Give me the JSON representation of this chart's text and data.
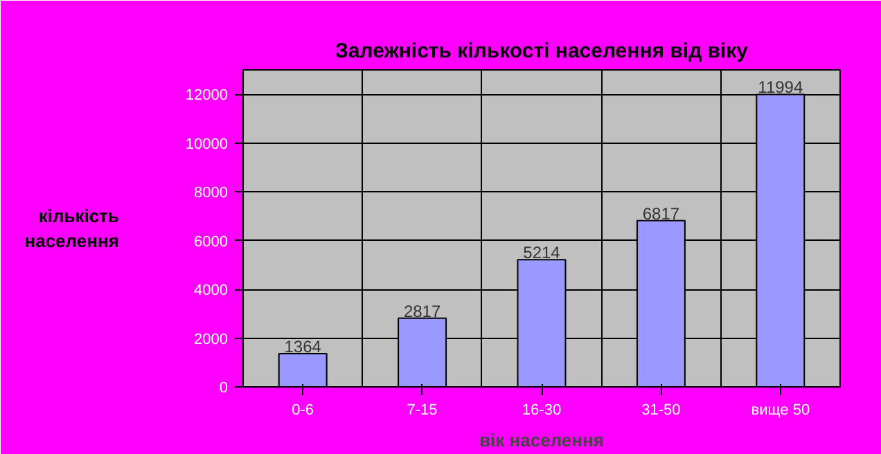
{
  "chart_data": {
    "type": "bar",
    "title": "Залежність кількості населення від віку",
    "xlabel": "вік населення",
    "ylabel": "кількість\nнаселення",
    "categories": [
      "0-6",
      "7-15",
      "16-30",
      "31-50",
      "вище 50"
    ],
    "values": [
      1364,
      2817,
      5214,
      6817,
      11994
    ],
    "color": "#9999ff",
    "ylim": [
      0,
      13000
    ],
    "yticks": [
      0,
      2000,
      4000,
      6000,
      8000,
      10000,
      12000
    ],
    "grid": true,
    "data_labels": true
  }
}
